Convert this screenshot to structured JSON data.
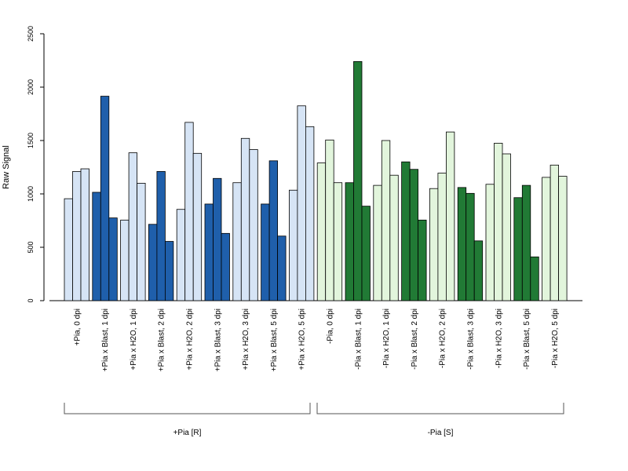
{
  "chart_data": {
    "type": "bar",
    "ylabel": "Raw Signal",
    "ylim": [
      0,
      2500
    ],
    "yticks": [
      0,
      500,
      1000,
      1500,
      2000,
      2500
    ],
    "grid": false,
    "categories": [
      "+Pia, 0 dpi",
      "+Pia x Blast, 1 dpi",
      "+Pia x H2O, 1 dpi",
      "+Pia x Blast, 2 dpi",
      "+Pia x H2O, 2 dpi",
      "+Pia x Blast, 3 dpi",
      "+Pia x H2O, 3 dpi",
      "+Pia x Blast, 5 dpi",
      "+Pia x H2O, 5 dpi",
      "-Pia, 0 dpi",
      "-Pia x Blast, 1 dpi",
      "-Pia x H2O, 1 dpi",
      "-Pia x Blast, 2 dpi",
      "-Pia x H2O, 2 dpi",
      "-Pia x Blast, 3 dpi",
      "-Pia x H2O, 3 dpi",
      "-Pia x Blast, 5 dpi",
      "-Pia x H2O, 5 dpi"
    ],
    "values": [
      [
        955,
        1210,
        1235
      ],
      [
        1015,
        1915,
        775
      ],
      [
        755,
        1385,
        1100
      ],
      [
        715,
        1210,
        555
      ],
      [
        855,
        1670,
        1380
      ],
      [
        905,
        1145,
        630
      ],
      [
        1105,
        1520,
        1415
      ],
      [
        905,
        1310,
        605
      ],
      [
        1035,
        1825,
        1630
      ],
      [
        1290,
        1505,
        1105
      ],
      [
        1105,
        2240,
        885
      ],
      [
        1080,
        1500,
        1175
      ],
      [
        1300,
        1230,
        755
      ],
      [
        1050,
        1195,
        1580
      ],
      [
        1060,
        1005,
        560
      ],
      [
        1090,
        1475,
        1375
      ],
      [
        965,
        1080,
        410
      ],
      [
        1155,
        1270,
        1165
      ]
    ],
    "bar_colors": [
      "#d6e4f5",
      "#1f5fab",
      "#d6e4f5",
      "#1f5fab",
      "#d6e4f5",
      "#1f5fab",
      "#d6e4f5",
      "#1f5fab",
      "#d6e4f5",
      "#e2f5dc",
      "#217a35",
      "#e2f5dc",
      "#217a35",
      "#e2f5dc",
      "#217a35",
      "#e2f5dc",
      "#217a35",
      "#e2f5dc"
    ],
    "groups": [
      {
        "label": "+Pia [R]",
        "from": 0,
        "to": 8
      },
      {
        "label": "-Pia [S]",
        "from": 9,
        "to": 17
      }
    ]
  }
}
